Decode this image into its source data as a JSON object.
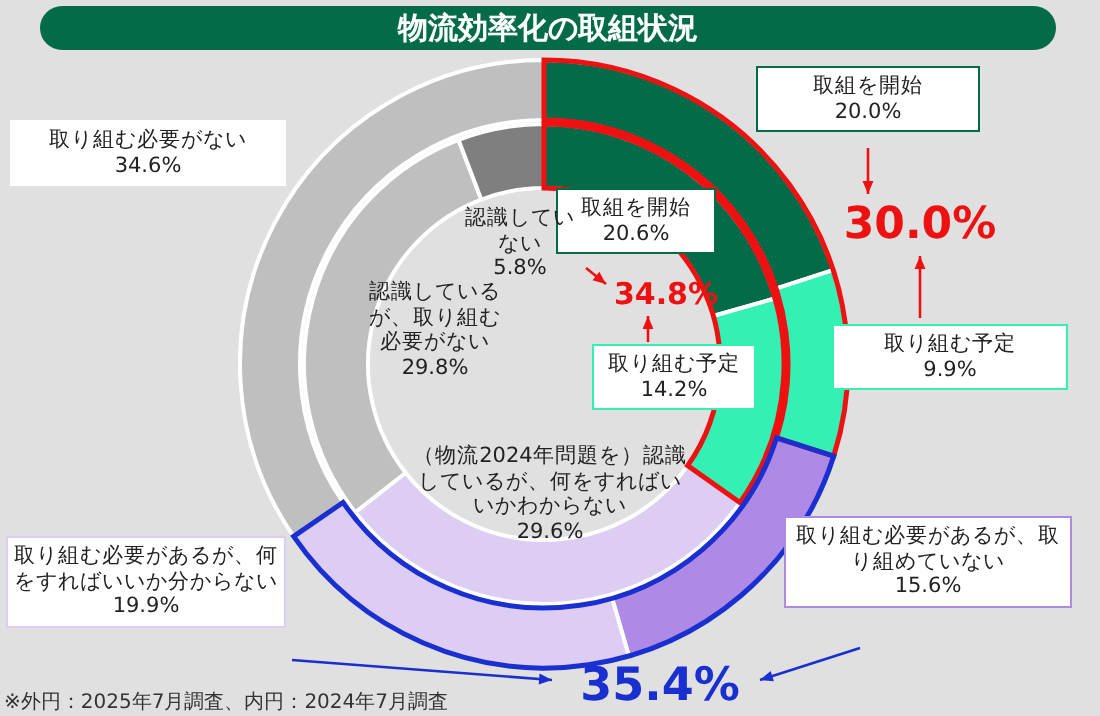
{
  "chart_data": [
    {
      "type": "donut",
      "title": "物流効率化の取組状況",
      "categories": [
        "取組を開始",
        "取り組む予定",
        "取り組む必要があるが、取り組めていない",
        "取り組む必要があるが、何をすればいいか分からない",
        "取り組む必要がない"
      ],
      "values": [
        20.0,
        9.9,
        15.6,
        19.9,
        34.6
      ],
      "colors": [
        "#046b48",
        "#33f0b4",
        "#ae8ae6",
        "#ddcdf3",
        "#bfbfbf"
      ],
      "value_labels": [
        "20.0%",
        "9.9%",
        "15.6%",
        "19.9%",
        "34.6%"
      ],
      "annotations": [
        "30.0%",
        "35.4%",
        "※外円：2025年7月調査、内円：2024年7月調査"
      ]
    },
    {
      "type": "donut",
      "categories": [
        "取組を開始",
        "取り組む予定",
        "（物流2024年問題を）認識しているが、何をすればいいかわからない",
        "認識しているが、取り組む必要がない",
        "認識していない"
      ],
      "values": [
        20.6,
        14.2,
        29.6,
        29.8,
        5.8
      ],
      "colors": [
        "#046b48",
        "#33f0b4",
        "#ddcdf3",
        "#bfbfbf",
        "#7f7f7f"
      ],
      "value_labels": [
        "20.6%",
        "14.2%",
        "29.6%",
        "29.8%",
        "5.8%"
      ],
      "annotations": [
        "34.8%"
      ]
    }
  ]
}
